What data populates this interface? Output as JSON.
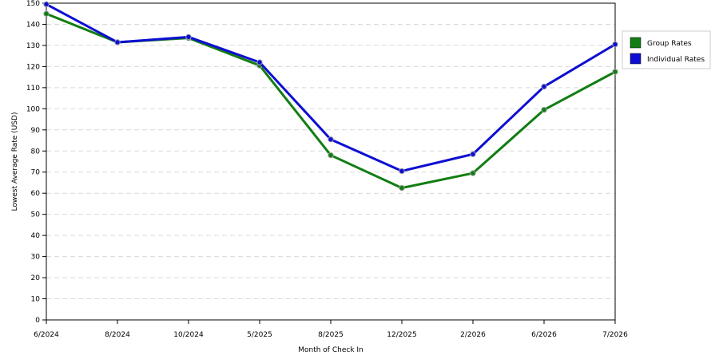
{
  "chart_data": {
    "type": "line",
    "categories": [
      "6/2024",
      "8/2024",
      "10/2024",
      "5/2025",
      "8/2025",
      "12/2025",
      "2/2026",
      "6/2026",
      "7/2026"
    ],
    "series": [
      {
        "name": "Group Rates",
        "color": "#127d12",
        "values": [
          145,
          131.5,
          133.5,
          120.5,
          78,
          62.5,
          69.5,
          99.5,
          117.5
        ]
      },
      {
        "name": "Individual Rates",
        "color": "#0e0ed2",
        "values": [
          149.5,
          131.5,
          134,
          122,
          85.5,
          70.5,
          78.5,
          110.5,
          130.5
        ]
      }
    ],
    "xlabel": "Month of Check In",
    "ylabel": "Lowest Average Rate (USD)",
    "ylim": [
      0,
      150
    ],
    "yticks": [
      0,
      10,
      20,
      30,
      40,
      50,
      60,
      70,
      80,
      90,
      100,
      110,
      120,
      130,
      140,
      150
    ],
    "grid": true,
    "legend_position": "right"
  }
}
